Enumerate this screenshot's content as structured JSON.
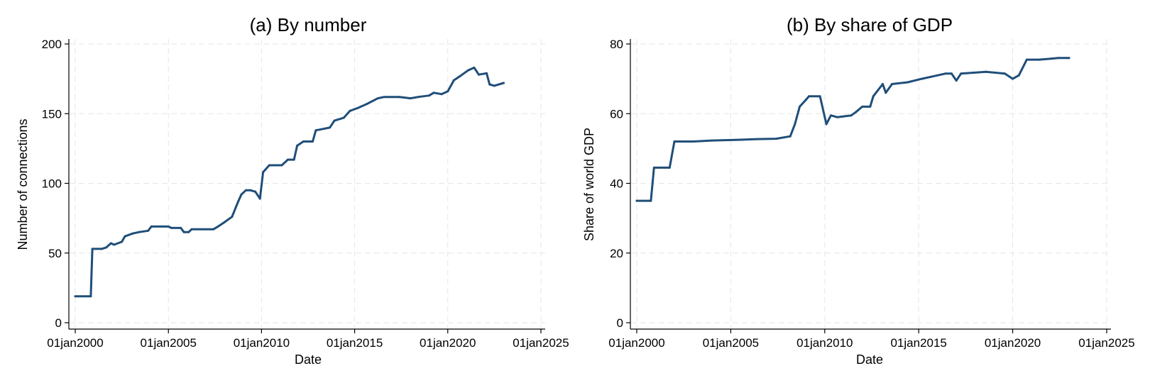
{
  "chart_data": [
    {
      "type": "line",
      "title": "(a) By number",
      "xlabel": "Date",
      "ylabel": "Number of connections",
      "ylim": [
        0,
        200
      ],
      "yticks": [
        0,
        50,
        100,
        150,
        200
      ],
      "xlim": [
        "2000-01-01",
        "2025-01-01"
      ],
      "xticks": [
        "01jan2000",
        "01jan2005",
        "01jan2010",
        "01jan2015",
        "01jan2020",
        "01jan2025"
      ],
      "grid": true,
      "line_color": "#1f4e79",
      "series": [
        {
          "points": [
            [
              "2000-01-01",
              19
            ],
            [
              "2000-11-01",
              19
            ],
            [
              "2000-12-01",
              53
            ],
            [
              "2001-06-01",
              53
            ],
            [
              "2001-09-01",
              54
            ],
            [
              "2001-12-01",
              57
            ],
            [
              "2002-02-01",
              56
            ],
            [
              "2002-07-01",
              58
            ],
            [
              "2002-09-01",
              62
            ],
            [
              "2003-02-01",
              64
            ],
            [
              "2003-06-01",
              65
            ],
            [
              "2003-12-01",
              66
            ],
            [
              "2004-02-01",
              69
            ],
            [
              "2005-01-01",
              69
            ],
            [
              "2005-03-01",
              68
            ],
            [
              "2005-09-01",
              68
            ],
            [
              "2005-11-01",
              65
            ],
            [
              "2006-02-01",
              65
            ],
            [
              "2006-04-01",
              67
            ],
            [
              "2007-06-01",
              67
            ],
            [
              "2007-09-01",
              69
            ],
            [
              "2008-01-01",
              72
            ],
            [
              "2008-06-01",
              76
            ],
            [
              "2008-10-01",
              87
            ],
            [
              "2008-12-01",
              92
            ],
            [
              "2009-03-01",
              95
            ],
            [
              "2009-06-01",
              95
            ],
            [
              "2009-09-01",
              94
            ],
            [
              "2009-12-01",
              89
            ],
            [
              "2010-02-01",
              108
            ],
            [
              "2010-06-01",
              113
            ],
            [
              "2011-02-01",
              113
            ],
            [
              "2011-06-01",
              117
            ],
            [
              "2011-10-01",
              117
            ],
            [
              "2011-12-01",
              127
            ],
            [
              "2012-04-01",
              130
            ],
            [
              "2012-10-01",
              130
            ],
            [
              "2012-12-01",
              138
            ],
            [
              "2013-09-01",
              140
            ],
            [
              "2013-12-01",
              145
            ],
            [
              "2014-06-01",
              147
            ],
            [
              "2014-10-01",
              152
            ],
            [
              "2015-03-01",
              154
            ],
            [
              "2015-09-01",
              157
            ],
            [
              "2016-04-01",
              161
            ],
            [
              "2016-08-01",
              162
            ],
            [
              "2017-06-01",
              162
            ],
            [
              "2018-01-01",
              161
            ],
            [
              "2018-06-01",
              162
            ],
            [
              "2019-01-01",
              163
            ],
            [
              "2019-04-01",
              165
            ],
            [
              "2019-09-01",
              164
            ],
            [
              "2020-01-01",
              166
            ],
            [
              "2020-05-01",
              174
            ],
            [
              "2020-09-01",
              177
            ],
            [
              "2021-02-01",
              181
            ],
            [
              "2021-06-01",
              183
            ],
            [
              "2021-09-01",
              178
            ],
            [
              "2022-02-01",
              179
            ],
            [
              "2022-04-01",
              171
            ],
            [
              "2022-07-01",
              170
            ],
            [
              "2023-01-01",
              172
            ]
          ]
        }
      ]
    },
    {
      "type": "line",
      "title": "(b) By share of GDP",
      "xlabel": "Date",
      "ylabel": "Share of world GDP",
      "ylim": [
        0,
        80
      ],
      "yticks": [
        0,
        20,
        40,
        60,
        80
      ],
      "xlim": [
        "2000-01-01",
        "2025-01-01"
      ],
      "xticks": [
        "01jan2000",
        "01jan2005",
        "01jan2010",
        "01jan2015",
        "01jan2020",
        "01jan2025"
      ],
      "grid": true,
      "line_color": "#1f4e79",
      "series": [
        {
          "points": [
            [
              "2000-01-01",
              35
            ],
            [
              "2000-10-01",
              35
            ],
            [
              "2000-12-01",
              44.5
            ],
            [
              "2001-10-01",
              44.5
            ],
            [
              "2002-01-01",
              52
            ],
            [
              "2003-01-01",
              52
            ],
            [
              "2004-01-01",
              52.3
            ],
            [
              "2005-06-01",
              52.5
            ],
            [
              "2006-06-01",
              52.7
            ],
            [
              "2007-06-01",
              52.8
            ],
            [
              "2008-03-01",
              53.5
            ],
            [
              "2008-06-01",
              57
            ],
            [
              "2008-09-01",
              62
            ],
            [
              "2009-01-01",
              64
            ],
            [
              "2009-03-01",
              65
            ],
            [
              "2009-10-01",
              65
            ],
            [
              "2010-02-01",
              57
            ],
            [
              "2010-05-01",
              59.5
            ],
            [
              "2010-09-01",
              59
            ],
            [
              "2011-06-01",
              59.5
            ],
            [
              "2011-09-01",
              60.5
            ],
            [
              "2012-01-01",
              62
            ],
            [
              "2012-06-01",
              62
            ],
            [
              "2012-08-01",
              65
            ],
            [
              "2013-02-01",
              68.5
            ],
            [
              "2013-04-01",
              66
            ],
            [
              "2013-08-01",
              68.5
            ],
            [
              "2014-06-01",
              69
            ],
            [
              "2015-03-01",
              70
            ],
            [
              "2015-08-01",
              70.5
            ],
            [
              "2016-06-01",
              71.5
            ],
            [
              "2016-10-01",
              71.5
            ],
            [
              "2017-01-01",
              69.5
            ],
            [
              "2017-04-01",
              71.5
            ],
            [
              "2018-08-01",
              72
            ],
            [
              "2019-08-01",
              71.5
            ],
            [
              "2020-01-01",
              70
            ],
            [
              "2020-05-01",
              71
            ],
            [
              "2020-10-01",
              75.5
            ],
            [
              "2021-06-01",
              75.5
            ],
            [
              "2022-02-01",
              75.8
            ],
            [
              "2022-06-01",
              76
            ],
            [
              "2023-01-01",
              76
            ]
          ]
        }
      ]
    }
  ]
}
